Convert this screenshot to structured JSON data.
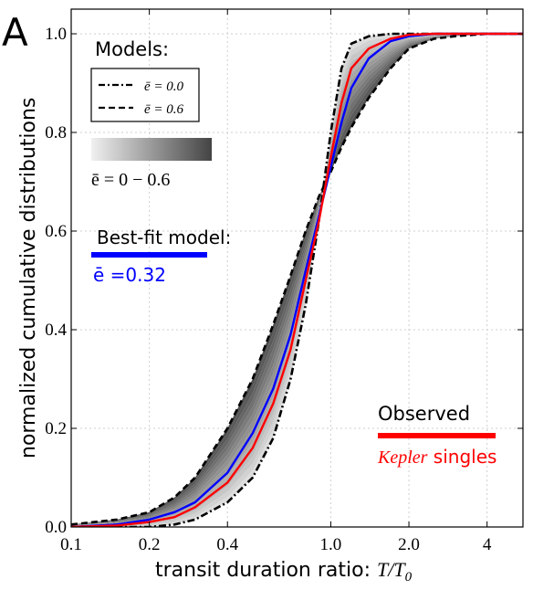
{
  "panel_label": "A",
  "colors": {
    "best_fit": "#0000ff",
    "observed": "#ff0000",
    "model_curves": "#000000",
    "band_light": "#e2e2e2",
    "band_dark": "#4a4a4a"
  },
  "legend": {
    "models_title": "Models:",
    "dashdot_label": "ē = 0.0",
    "dashed_label": "ē = 0.6",
    "band_label": "ē = 0 − 0.6",
    "bestfit_title": "Best-fit model:",
    "bestfit_value": "ē =0.32",
    "observed_title": "Observed",
    "observed_sub_italic": "Kepler",
    "observed_sub_rest": " singles"
  },
  "chart_data": {
    "type": "line",
    "title": "",
    "xlabel_text": "transit duration ratio: ",
    "xlabel_math": "T/T",
    "xlabel_sub": "0",
    "ylabel": "normalized cumulative distributions",
    "x_scale": "log",
    "xlim": [
      0.1,
      5.5
    ],
    "ylim": [
      0,
      1.05
    ],
    "x_ticks": [
      0.1,
      0.2,
      0.4,
      1.0,
      2.0,
      4
    ],
    "x_tick_labels": [
      "0.1",
      "0.2",
      "0.4",
      "1.0",
      "2.0",
      "4"
    ],
    "y_ticks": [
      0.0,
      0.2,
      0.4,
      0.6,
      0.8,
      1.0
    ],
    "y_tick_labels": [
      "0.0",
      "0.2",
      "0.4",
      "0.6",
      "0.8",
      "1.0"
    ],
    "grid": true,
    "x": [
      0.1,
      0.15,
      0.2,
      0.25,
      0.3,
      0.4,
      0.5,
      0.6,
      0.7,
      0.8,
      0.9,
      1.0,
      1.1,
      1.2,
      1.4,
      1.7,
      2.0,
      2.5,
      3.0,
      4.0,
      5.5
    ],
    "series": [
      {
        "name": "ē = 0.0",
        "style": "dash-dot",
        "y": [
          0.0,
          0.0,
          0.0,
          0.005,
          0.015,
          0.05,
          0.1,
          0.18,
          0.3,
          0.45,
          0.62,
          0.8,
          0.93,
          0.98,
          0.995,
          1.0,
          1.0,
          1.0,
          1.0,
          1.0,
          1.0
        ]
      },
      {
        "name": "ē = 0.6",
        "style": "dashed",
        "y": [
          0.005,
          0.015,
          0.03,
          0.06,
          0.1,
          0.2,
          0.3,
          0.41,
          0.51,
          0.6,
          0.67,
          0.72,
          0.77,
          0.81,
          0.87,
          0.93,
          0.97,
          0.99,
          0.995,
          1.0,
          1.0
        ]
      },
      {
        "name": "Best-fit model",
        "style": "solid",
        "y": [
          0.0,
          0.005,
          0.015,
          0.03,
          0.05,
          0.11,
          0.19,
          0.28,
          0.39,
          0.52,
          0.63,
          0.73,
          0.82,
          0.89,
          0.95,
          0.985,
          0.995,
          1.0,
          1.0,
          1.0,
          1.0
        ]
      },
      {
        "name": "Observed Kepler singles",
        "style": "solid",
        "y": [
          0.0,
          0.003,
          0.01,
          0.02,
          0.04,
          0.09,
          0.16,
          0.25,
          0.36,
          0.5,
          0.62,
          0.75,
          0.86,
          0.93,
          0.97,
          0.99,
          0.998,
          1.0,
          1.0,
          1.0,
          1.0
        ]
      }
    ]
  }
}
